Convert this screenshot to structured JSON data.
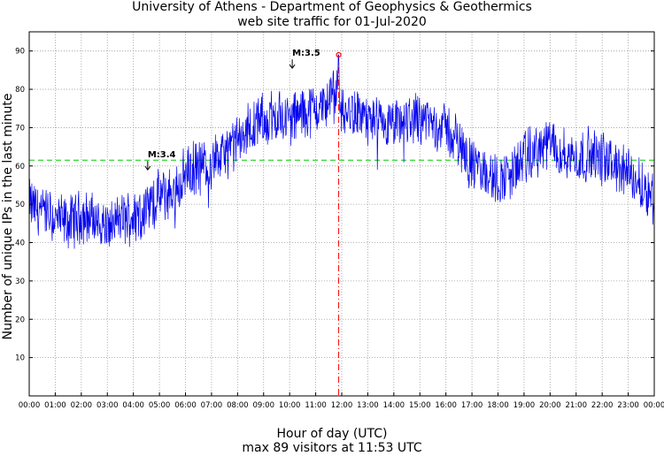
{
  "chart_data": {
    "type": "line",
    "title": "University of Athens - Department of Geophysics & Geothermics",
    "subtitle": "web site traffic for 01-Jul-2020",
    "xlabel": "Hour of day (UTC)",
    "xlabel2": "max 89 visitors at 11:53 UTC",
    "ylabel": "Number of unique IPs in the last minute",
    "xlim": [
      0,
      24
    ],
    "ylim": [
      0,
      95
    ],
    "grid": true,
    "x_tick_labels": [
      "00:00",
      "01:00",
      "02:00",
      "03:00",
      "04:00",
      "05:00",
      "06:00",
      "07:00",
      "08:00",
      "09:00",
      "10:00",
      "11:00",
      "12:00",
      "13:00",
      "14:00",
      "15:00",
      "16:00",
      "17:00",
      "18:00",
      "19:00",
      "20:00",
      "21:00",
      "22:00",
      "23:00",
      "00:00"
    ],
    "y_ticks": [
      10,
      20,
      30,
      40,
      50,
      60,
      70,
      80,
      90
    ],
    "series": [
      {
        "color": "#0000ee",
        "x": [
          0,
          0.5,
          1,
          1.5,
          2,
          2.5,
          3,
          3.5,
          4,
          4.5,
          5,
          5.5,
          6,
          6.5,
          7,
          7.5,
          8,
          8.5,
          9,
          9.5,
          10,
          10.5,
          11,
          11.5,
          11.883,
          12,
          12.5,
          13,
          13.5,
          14,
          14.5,
          15,
          15.5,
          16,
          16.5,
          17,
          17.5,
          18,
          18.5,
          19,
          19.5,
          20,
          20.5,
          21,
          21.5,
          22,
          22.5,
          23,
          23.5,
          24
        ],
        "values": [
          50,
          48,
          46,
          45,
          47,
          46,
          44,
          46,
          47,
          49,
          52,
          53,
          58,
          60,
          61,
          63,
          66,
          70,
          72,
          73,
          72,
          74,
          75,
          76,
          89,
          73,
          74,
          72,
          70,
          70,
          72,
          73,
          71,
          70,
          66,
          60,
          58,
          56,
          58,
          62,
          64,
          66,
          63,
          62,
          63,
          62,
          60,
          58,
          55,
          52
        ]
      }
    ],
    "reference_line": {
      "value": 61.5,
      "color": "#00cc00",
      "style": "dashed"
    },
    "max_marker": {
      "x": 11.883,
      "y": 89,
      "color": "#ff0000"
    },
    "annotations": [
      {
        "text": "M:3.4",
        "x": 4.55,
        "y": 59
      },
      {
        "text": "M:3.5",
        "x": 10.1,
        "y": 85.5
      }
    ]
  }
}
